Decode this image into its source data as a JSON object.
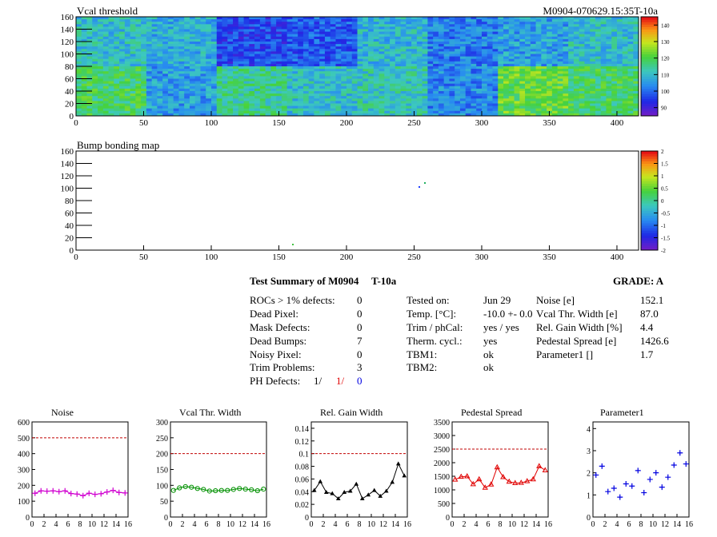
{
  "header": {
    "left_title": "Vcal threshold",
    "right_id": "M0904-070629.15:35T-10a"
  },
  "colors": {
    "threshold_line": "#c00000",
    "noise": "#d000d0",
    "vcal_width": "#009000",
    "gain_width": "#000000",
    "pedestal": "#e00000",
    "parameter1": "#0000e0"
  },
  "map1": {
    "title": "Vcal threshold",
    "x_ticks": [
      "0",
      "50",
      "100",
      "150",
      "200",
      "250",
      "300",
      "350",
      "400"
    ],
    "y_ticks": [
      "0",
      "20",
      "40",
      "60",
      "80",
      "100",
      "120",
      "140",
      "160"
    ],
    "xlim": [
      0,
      416
    ],
    "ylim": [
      0,
      160
    ],
    "colorbar_ticks": [
      "90",
      "100",
      "110",
      "120",
      "130",
      "140"
    ],
    "colorbar_range": [
      85,
      145
    ]
  },
  "map2": {
    "title": "Bump bonding map",
    "x_ticks": [
      "0",
      "50",
      "100",
      "150",
      "200",
      "250",
      "300",
      "350",
      "400"
    ],
    "y_ticks": [
      "0",
      "20",
      "40",
      "60",
      "80",
      "100",
      "120",
      "140",
      "160"
    ],
    "xlim": [
      0,
      416
    ],
    "ylim": [
      0,
      160
    ],
    "colorbar_ticks": [
      "-2",
      "-1.5",
      "-1",
      "-0.5",
      "0",
      "0.5",
      "1",
      "1.5",
      "2"
    ],
    "colorbar_range": [
      -2,
      2
    ]
  },
  "summary": {
    "title": "Test Summary of M0904",
    "temp_label": "T-10a",
    "grade_label": "GRADE:  A",
    "left_rows": [
      {
        "label": "ROCs > 1% defects:",
        "value": "0"
      },
      {
        "label": "Dead Pixel:",
        "value": "0"
      },
      {
        "label": "Mask Defects:",
        "value": "0"
      },
      {
        "label": "Dead Bumps:",
        "value": "7"
      },
      {
        "label": "Noisy Pixel:",
        "value": "0"
      },
      {
        "label": "Trim Problems:",
        "value": "3"
      }
    ],
    "ph_defects": {
      "label": "PH Defects:",
      "v1": "1/",
      "v2": "1/",
      "v3": "0"
    },
    "mid_rows": [
      {
        "label": "Tested on:",
        "value": "Jun 29"
      },
      {
        "label": "Temp. [°C]:",
        "value": "-10.0 +- 0.0"
      },
      {
        "label": "Trim / phCal:",
        "value": "yes / yes"
      },
      {
        "label": "Therm. cycl.:",
        "value": "yes"
      },
      {
        "label": "TBM1:",
        "value": "ok"
      },
      {
        "label": "TBM2:",
        "value": "ok"
      }
    ],
    "right_rows": [
      {
        "label": "Noise [e]",
        "value": "152.1"
      },
      {
        "label": "Vcal Thr. Width [e]",
        "value": "87.0"
      },
      {
        "label": "Rel. Gain Width [%]",
        "value": "4.4"
      },
      {
        "label": "Pedestal Spread [e]",
        "value": "1426.6"
      },
      {
        "label": "Parameter1 []",
        "value": "1.7"
      }
    ]
  },
  "chart_data": [
    {
      "type": "line",
      "title": "Noise",
      "x": [
        0,
        1,
        2,
        3,
        4,
        5,
        6,
        7,
        8,
        9,
        10,
        11,
        12,
        13,
        14,
        15
      ],
      "values": [
        150,
        165,
        163,
        165,
        160,
        165,
        148,
        145,
        135,
        150,
        143,
        147,
        158,
        168,
        155,
        152
      ],
      "threshold": 500,
      "xlim": [
        0,
        16
      ],
      "ylim": [
        0,
        600
      ],
      "x_ticks": [
        "0",
        "2",
        "4",
        "6",
        "8",
        "10",
        "12",
        "14",
        "16"
      ],
      "y_ticks": [
        "0",
        "100",
        "200",
        "300",
        "400",
        "500",
        "600"
      ],
      "marker": "cross",
      "color": "#d000d0"
    },
    {
      "type": "line",
      "title": "Vcal Thr. Width",
      "x": [
        0,
        1,
        2,
        3,
        4,
        5,
        6,
        7,
        8,
        9,
        10,
        11,
        12,
        13,
        14,
        15
      ],
      "values": [
        84,
        92,
        96,
        94,
        90,
        87,
        82,
        83,
        84,
        84,
        87,
        90,
        88,
        86,
        83,
        88
      ],
      "threshold": 200,
      "xlim": [
        0,
        16
      ],
      "ylim": [
        0,
        300
      ],
      "x_ticks": [
        "0",
        "2",
        "4",
        "6",
        "8",
        "10",
        "12",
        "14",
        "16"
      ],
      "y_ticks": [
        "0",
        "50",
        "100",
        "150",
        "200",
        "250",
        "300"
      ],
      "marker": "circle",
      "color": "#009000"
    },
    {
      "type": "line",
      "title": "Rel. Gain Width",
      "x": [
        0,
        1,
        2,
        3,
        4,
        5,
        6,
        7,
        8,
        9,
        10,
        11,
        12,
        13,
        14,
        15
      ],
      "values": [
        0.042,
        0.056,
        0.039,
        0.037,
        0.029,
        0.039,
        0.041,
        0.052,
        0.029,
        0.035,
        0.042,
        0.033,
        0.041,
        0.055,
        0.084,
        0.065
      ],
      "threshold": 0.1,
      "xlim": [
        0,
        16
      ],
      "ylim": [
        0,
        0.15
      ],
      "x_ticks": [
        "0",
        "2",
        "4",
        "6",
        "8",
        "10",
        "12",
        "14",
        "16"
      ],
      "y_ticks": [
        "0",
        "0.02",
        "0.04",
        "0.06",
        "0.08",
        "0.1",
        "0.12",
        "0.14"
      ],
      "y_tick_values": [
        0,
        0.02,
        0.04,
        0.06,
        0.08,
        0.1,
        0.12,
        0.14
      ],
      "marker": "triangle",
      "color": "#000000"
    },
    {
      "type": "line",
      "title": "Pedestal Spread",
      "x": [
        0,
        1,
        2,
        3,
        4,
        5,
        6,
        7,
        8,
        9,
        10,
        11,
        12,
        13,
        14,
        15
      ],
      "values": [
        1380,
        1480,
        1500,
        1210,
        1390,
        1080,
        1200,
        1830,
        1470,
        1300,
        1250,
        1260,
        1320,
        1390,
        1870,
        1720
      ],
      "threshold": 2500,
      "xlim": [
        0,
        16
      ],
      "ylim": [
        0,
        3500
      ],
      "x_ticks": [
        "0",
        "2",
        "4",
        "6",
        "8",
        "10",
        "12",
        "14",
        "16"
      ],
      "y_ticks": [
        "0",
        "500",
        "1000",
        "1500",
        "2000",
        "2500",
        "3000",
        "3500"
      ],
      "marker": "triangle-open",
      "color": "#e00000"
    },
    {
      "type": "scatter",
      "title": "Parameter1",
      "x": [
        0,
        1,
        2,
        3,
        4,
        5,
        6,
        7,
        8,
        9,
        10,
        11,
        12,
        13,
        14,
        15
      ],
      "values": [
        1.9,
        2.3,
        1.15,
        1.3,
        0.9,
        1.5,
        1.4,
        2.1,
        1.1,
        1.7,
        2.0,
        1.35,
        1.8,
        2.35,
        2.9,
        2.4
      ],
      "xlim": [
        0,
        16
      ],
      "ylim": [
        0,
        4.3
      ],
      "x_ticks": [
        "0",
        "2",
        "4",
        "6",
        "8",
        "10",
        "12",
        "14",
        "16"
      ],
      "y_ticks": [
        "0",
        "1",
        "2",
        "3",
        "4"
      ],
      "marker": "cross",
      "color": "#0000e0"
    }
  ]
}
